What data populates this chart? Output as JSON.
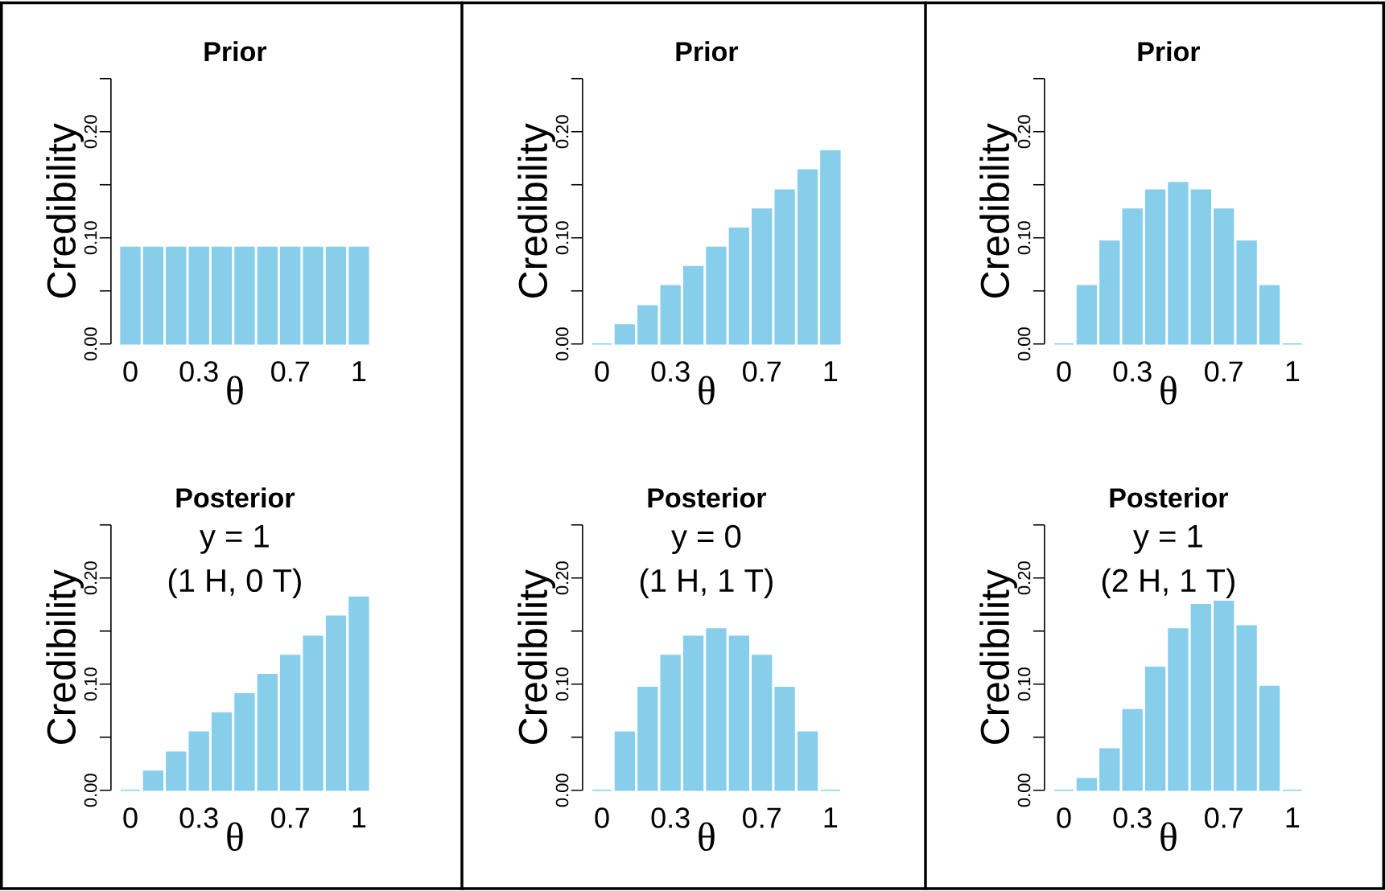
{
  "chart_data": [
    {
      "type": "bar",
      "title": "Prior",
      "xlabel": "θ",
      "ylabel": "Credibility",
      "color": "#87ceeb",
      "x": [
        0,
        0.1,
        0.2,
        0.3,
        0.4,
        0.5,
        0.6,
        0.7,
        0.8,
        0.9,
        1
      ],
      "values": [
        0.091,
        0.091,
        0.091,
        0.091,
        0.091,
        0.091,
        0.091,
        0.091,
        0.091,
        0.091,
        0.091
      ],
      "xlim": [
        -0.085,
        1
      ],
      "xticks": [
        0,
        0.3,
        0.7,
        1
      ],
      "ylim": [
        0,
        0.25
      ],
      "yticks": [
        {
          "value": 0,
          "label": "0.00"
        },
        {
          "value": 0.05,
          "label": null
        },
        {
          "value": 0.1,
          "label": "0.10"
        },
        {
          "value": 0.15,
          "label": null
        },
        {
          "value": 0.2,
          "label": "0.20"
        },
        {
          "value": 0.25,
          "label": null
        }
      ]
    },
    {
      "type": "bar",
      "title": "Prior",
      "xlabel": "θ",
      "ylabel": "Credibility",
      "color": "#87ceeb",
      "x": [
        0,
        0.1,
        0.2,
        0.3,
        0.4,
        0.5,
        0.6,
        0.7,
        0.8,
        0.9,
        1
      ],
      "values": [
        0,
        0.018,
        0.036,
        0.055,
        0.073,
        0.091,
        0.109,
        0.127,
        0.145,
        0.164,
        0.182
      ],
      "xlim": [
        -0.085,
        1
      ],
      "xticks": [
        0,
        0.3,
        0.7,
        1
      ],
      "ylim": [
        0,
        0.25
      ],
      "yticks": [
        {
          "value": 0,
          "label": "0.00"
        },
        {
          "value": 0.05,
          "label": null
        },
        {
          "value": 0.1,
          "label": "0.10"
        },
        {
          "value": 0.15,
          "label": null
        },
        {
          "value": 0.2,
          "label": "0.20"
        },
        {
          "value": 0.25,
          "label": null
        }
      ]
    },
    {
      "type": "bar",
      "title": "Prior",
      "xlabel": "θ",
      "ylabel": "Credibility",
      "color": "#87ceeb",
      "x": [
        0,
        0.1,
        0.2,
        0.3,
        0.4,
        0.5,
        0.6,
        0.7,
        0.8,
        0.9,
        1
      ],
      "values": [
        0,
        0.055,
        0.097,
        0.127,
        0.145,
        0.152,
        0.145,
        0.127,
        0.097,
        0.055,
        0
      ],
      "xlim": [
        -0.085,
        1
      ],
      "xticks": [
        0,
        0.3,
        0.7,
        1
      ],
      "ylim": [
        0,
        0.25
      ],
      "yticks": [
        {
          "value": 0,
          "label": "0.00"
        },
        {
          "value": 0.05,
          "label": null
        },
        {
          "value": 0.1,
          "label": "0.10"
        },
        {
          "value": 0.15,
          "label": null
        },
        {
          "value": 0.2,
          "label": "0.20"
        },
        {
          "value": 0.25,
          "label": null
        }
      ]
    },
    {
      "type": "bar",
      "title": "Posterior",
      "xlabel": "θ",
      "ylabel": "Credibility",
      "color": "#87ceeb",
      "annotations": [
        "y = 1",
        "(1 H, 0 T)"
      ],
      "x": [
        0,
        0.1,
        0.2,
        0.3,
        0.4,
        0.5,
        0.6,
        0.7,
        0.8,
        0.9,
        1
      ],
      "values": [
        0,
        0.018,
        0.036,
        0.055,
        0.073,
        0.091,
        0.109,
        0.127,
        0.145,
        0.164,
        0.182
      ],
      "xlim": [
        -0.085,
        1
      ],
      "xticks": [
        0,
        0.3,
        0.7,
        1
      ],
      "ylim": [
        0,
        0.25
      ],
      "yticks": [
        {
          "value": 0,
          "label": "0.00"
        },
        {
          "value": 0.05,
          "label": null
        },
        {
          "value": 0.1,
          "label": "0.10"
        },
        {
          "value": 0.15,
          "label": null
        },
        {
          "value": 0.2,
          "label": "0.20"
        },
        {
          "value": 0.25,
          "label": null
        }
      ]
    },
    {
      "type": "bar",
      "title": "Posterior",
      "xlabel": "θ",
      "ylabel": "Credibility",
      "color": "#87ceeb",
      "annotations": [
        "y = 0",
        "(1 H, 1 T)"
      ],
      "x": [
        0,
        0.1,
        0.2,
        0.3,
        0.4,
        0.5,
        0.6,
        0.7,
        0.8,
        0.9,
        1
      ],
      "values": [
        0,
        0.055,
        0.097,
        0.127,
        0.145,
        0.152,
        0.145,
        0.127,
        0.097,
        0.055,
        0
      ],
      "xlim": [
        -0.085,
        1
      ],
      "xticks": [
        0,
        0.3,
        0.7,
        1
      ],
      "ylim": [
        0,
        0.25
      ],
      "yticks": [
        {
          "value": 0,
          "label": "0.00"
        },
        {
          "value": 0.05,
          "label": null
        },
        {
          "value": 0.1,
          "label": "0.10"
        },
        {
          "value": 0.15,
          "label": null
        },
        {
          "value": 0.2,
          "label": "0.20"
        },
        {
          "value": 0.25,
          "label": null
        }
      ]
    },
    {
      "type": "bar",
      "title": "Posterior",
      "xlabel": "θ",
      "ylabel": "Credibility",
      "color": "#87ceeb",
      "annotations": [
        "y = 1",
        "(2 H, 1 T)"
      ],
      "x": [
        0,
        0.1,
        0.2,
        0.3,
        0.4,
        0.5,
        0.6,
        0.7,
        0.8,
        0.9,
        1
      ],
      "values": [
        0,
        0.011,
        0.039,
        0.076,
        0.116,
        0.152,
        0.175,
        0.178,
        0.155,
        0.098,
        0
      ],
      "xlim": [
        -0.085,
        1
      ],
      "xticks": [
        0,
        0.3,
        0.7,
        1
      ],
      "ylim": [
        0,
        0.25
      ],
      "yticks": [
        {
          "value": 0,
          "label": "0.00"
        },
        {
          "value": 0.05,
          "label": null
        },
        {
          "value": 0.1,
          "label": "0.10"
        },
        {
          "value": 0.15,
          "label": null
        },
        {
          "value": 0.2,
          "label": "0.20"
        },
        {
          "value": 0.25,
          "label": null
        }
      ]
    }
  ]
}
